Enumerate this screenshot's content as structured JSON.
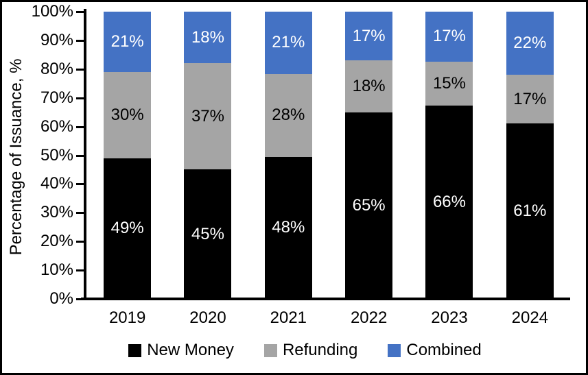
{
  "chart_data": {
    "type": "bar",
    "subtype": "stacked-100",
    "title": "",
    "ylabel": "Percentage of Issuance, %",
    "xlabel": "",
    "categories": [
      "2019",
      "2020",
      "2021",
      "2022",
      "2023",
      "2024"
    ],
    "series": [
      {
        "name": "New Money",
        "color": "#000000",
        "label_color": "#ffffff",
        "values": [
          49,
          45,
          48,
          65,
          66,
          61
        ]
      },
      {
        "name": "Refunding",
        "color": "#A5A5A5",
        "label_color": "#000000",
        "values": [
          30,
          37,
          28,
          18,
          15,
          17
        ]
      },
      {
        "name": "Combined",
        "color": "#4472C4",
        "label_color": "#ffffff",
        "values": [
          21,
          18,
          21,
          17,
          17,
          22
        ]
      }
    ],
    "value_suffix": "%",
    "yticks": [
      "0%",
      "10%",
      "20%",
      "30%",
      "40%",
      "50%",
      "60%",
      "70%",
      "80%",
      "90%",
      "100%"
    ],
    "ylim": [
      0,
      100
    ],
    "grid": false,
    "legend_position": "bottom"
  }
}
